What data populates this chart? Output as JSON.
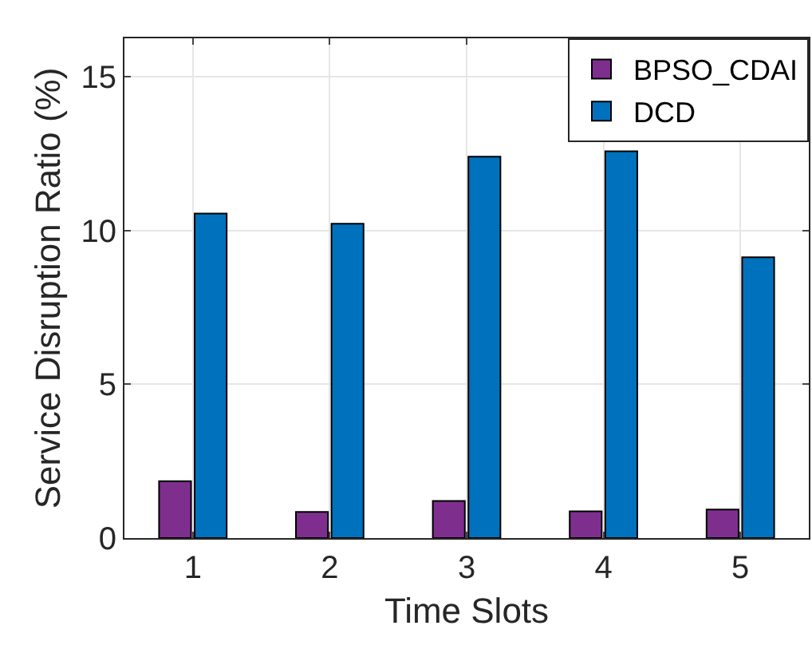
{
  "chart_data": {
    "type": "bar",
    "xlabel": "Time Slots",
    "ylabel": "Service Disruption Ratio (%)",
    "categories": [
      "1",
      "2",
      "3",
      "4",
      "5"
    ],
    "series": [
      {
        "name": "BPSO_CDAI",
        "color": "#7e2f8e",
        "values": [
          1.85,
          0.85,
          1.21,
          0.87,
          0.93
        ]
      },
      {
        "name": "DCD",
        "color": "#0072bd",
        "values": [
          10.55,
          10.22,
          12.4,
          12.58,
          9.13
        ]
      }
    ],
    "ylim": [
      0,
      16.25
    ],
    "yticks": [
      0,
      5,
      10,
      15
    ],
    "grid": true,
    "legend": "top right"
  }
}
